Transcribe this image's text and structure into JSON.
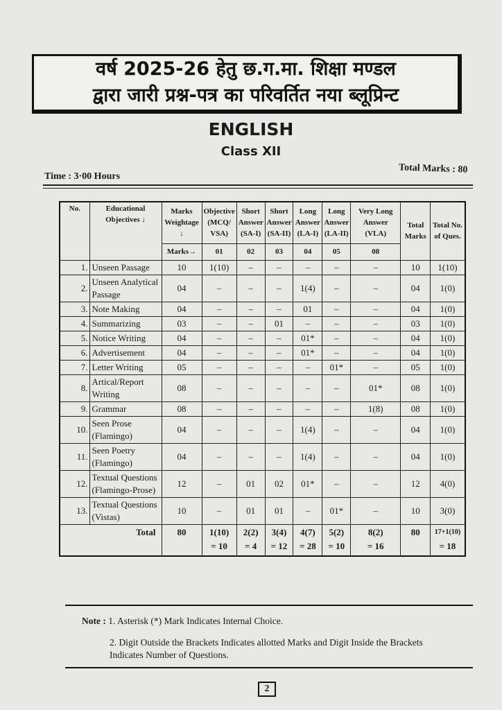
{
  "header": {
    "line1": "वर्ष 2025-26 हेतु छ.ग.मा. शिक्षा मण्डल",
    "line2": "द्वारा जारी प्रश्न-पत्र का परिवर्तित नया ब्लूप्रिन्ट"
  },
  "subject": "ENGLISH",
  "class": "Class XII",
  "time": "Time : 3·00 Hours",
  "total_marks": "Total Marks : 80",
  "table": {
    "headers": {
      "no": "No.",
      "objectives": "Educational Objectives ↓",
      "weightage": "Marks Weightage ↓",
      "marks_arrow": "Marks→",
      "cols": [
        {
          "label": "Objective (MCQ/ VSA)",
          "marks": "01"
        },
        {
          "label": "Short Answer (SA-I)",
          "marks": "02"
        },
        {
          "label": "Short Answer (SA-II)",
          "marks": "03"
        },
        {
          "label": "Long Answer (LA-I)",
          "marks": "04"
        },
        {
          "label": "Long Answer (LA-II)",
          "marks": "05"
        },
        {
          "label": "Very Long Answer (VLA)",
          "marks": "08"
        }
      ],
      "total_marks": "Total Marks",
      "total_ques": "Total No. of Ques."
    },
    "rows": [
      {
        "no": "1.",
        "obj": "Unseen Passage",
        "w": "10",
        "c": [
          "1(10)",
          "–",
          "–",
          "–",
          "–",
          "–"
        ],
        "tm": "10",
        "tq": "1(10)"
      },
      {
        "no": "2.",
        "obj": "Unseen Analytical Passage",
        "w": "04",
        "c": [
          "–",
          "–",
          "–",
          "1(4)",
          "–",
          "–"
        ],
        "tm": "04",
        "tq": "1(0)"
      },
      {
        "no": "3.",
        "obj": "Note Making",
        "w": "04",
        "c": [
          "–",
          "–",
          "–",
          "01",
          "–",
          "–"
        ],
        "tm": "04",
        "tq": "1(0)"
      },
      {
        "no": "4.",
        "obj": "Summarizing",
        "w": "03",
        "c": [
          "–",
          "–",
          "01",
          "–",
          "–",
          "–"
        ],
        "tm": "03",
        "tq": "1(0)"
      },
      {
        "no": "5.",
        "obj": "Notice Writing",
        "w": "04",
        "c": [
          "–",
          "–",
          "–",
          "01*",
          "–",
          "–"
        ],
        "tm": "04",
        "tq": "1(0)"
      },
      {
        "no": "6.",
        "obj": "Advertisement",
        "w": "04",
        "c": [
          "–",
          "–",
          "–",
          "01*",
          "–",
          "–"
        ],
        "tm": "04",
        "tq": "1(0)"
      },
      {
        "no": "7.",
        "obj": "Letter Writing",
        "w": "05",
        "c": [
          "–",
          "–",
          "–",
          "–",
          "01*",
          "–"
        ],
        "tm": "05",
        "tq": "1(0)"
      },
      {
        "no": "8.",
        "obj": "Artical/Report Writing",
        "w": "08",
        "c": [
          "–",
          "–",
          "–",
          "–",
          "–",
          "01*"
        ],
        "tm": "08",
        "tq": "1(0)"
      },
      {
        "no": "9.",
        "obj": "Grammar",
        "w": "08",
        "c": [
          "–",
          "–",
          "–",
          "–",
          "–",
          "1(8)"
        ],
        "tm": "08",
        "tq": "1(0)"
      },
      {
        "no": "10.",
        "obj": "Seen Prose (Flamingo)",
        "w": "04",
        "c": [
          "–",
          "–",
          "–",
          "1(4)",
          "–",
          "–"
        ],
        "tm": "04",
        "tq": "1(0)"
      },
      {
        "no": "11.",
        "obj": "Seen Poetry (Flamingo)",
        "w": "04",
        "c": [
          "–",
          "–",
          "–",
          "1(4)",
          "–",
          "–"
        ],
        "tm": "04",
        "tq": "1(0)"
      },
      {
        "no": "12.",
        "obj": "Textual Questions (Flamingo-Prose)",
        "w": "12",
        "c": [
          "–",
          "01",
          "02",
          "01*",
          "–",
          "–"
        ],
        "tm": "12",
        "tq": "4(0)"
      },
      {
        "no": "13.",
        "obj": "Textual Questions (Vistas)",
        "w": "10",
        "c": [
          "–",
          "01",
          "01",
          "–",
          "01*",
          "–"
        ],
        "tm": "10",
        "tq": "3(0)"
      }
    ],
    "total": {
      "label": "Total",
      "w": "80",
      "c": [
        [
          "1(10)",
          "= 10"
        ],
        [
          "2(2)",
          "= 4"
        ],
        [
          "3(4)",
          "= 12"
        ],
        [
          "4(7)",
          "= 28"
        ],
        [
          "5(2)",
          "= 10"
        ],
        [
          "8(2)",
          "= 16"
        ]
      ],
      "tm": "80",
      "tq": [
        "17+1(10)",
        "= 18"
      ]
    }
  },
  "note": {
    "label": "Note :",
    "items": [
      "1. Asterisk (*) Mark Indicates Internal Choice.",
      "2. Digit Outside the Brackets Indicates allotted Marks and Digit Inside the Brackets Indicates Number of Questions."
    ]
  },
  "page_number": "2"
}
